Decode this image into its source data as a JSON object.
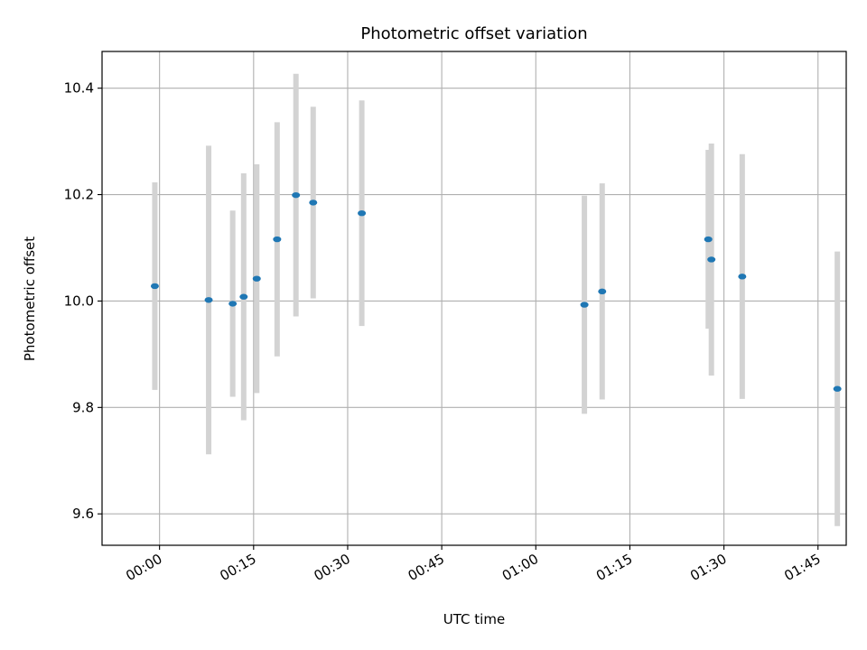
{
  "chart_data": {
    "type": "scatter",
    "title": "Photometric offset variation",
    "xlabel": "UTC time",
    "ylabel": "Photometric offset",
    "grid": true,
    "x_axis_type": "time",
    "xlim": [
      "23:50:50",
      "01:49:30"
    ],
    "ylim": [
      9.541,
      10.469
    ],
    "x_ticks": [
      "00:00",
      "00:15",
      "00:30",
      "00:45",
      "01:00",
      "01:15",
      "01:30",
      "01:45"
    ],
    "y_ticks": [
      9.6,
      9.8,
      10.0,
      10.2,
      10.4
    ],
    "y_tick_labels": [
      "9.6",
      "9.8",
      "10.0",
      "10.2",
      "10.4"
    ],
    "colors": {
      "point": "#1f77b4",
      "errorbar": "#d3d3d3",
      "grid": "#b0b0b0"
    },
    "points": [
      {
        "t": "23:59:15",
        "y": 10.028,
        "err": 0.195
      },
      {
        "t": "00:07:50",
        "y": 10.002,
        "err": 0.29
      },
      {
        "t": "00:11:40",
        "y": 9.995,
        "err": 0.175
      },
      {
        "t": "00:13:25",
        "y": 10.008,
        "err": 0.232
      },
      {
        "t": "00:15:30",
        "y": 10.042,
        "err": 0.215
      },
      {
        "t": "00:18:45",
        "y": 10.116,
        "err": 0.22
      },
      {
        "t": "00:21:45",
        "y": 10.199,
        "err": 0.228
      },
      {
        "t": "00:24:30",
        "y": 10.185,
        "err": 0.18
      },
      {
        "t": "00:32:15",
        "y": 10.165,
        "err": 0.212
      },
      {
        "t": "01:07:45",
        "y": 9.993,
        "err": 0.205
      },
      {
        "t": "01:10:35",
        "y": 10.018,
        "err": 0.203
      },
      {
        "t": "01:27:30",
        "y": 10.116,
        "err": 0.168
      },
      {
        "t": "01:28:00",
        "y": 10.078,
        "err": 0.218
      },
      {
        "t": "01:32:55",
        "y": 10.046,
        "err": 0.23
      },
      {
        "t": "01:48:05",
        "y": 9.835,
        "err": 0.258
      }
    ]
  }
}
